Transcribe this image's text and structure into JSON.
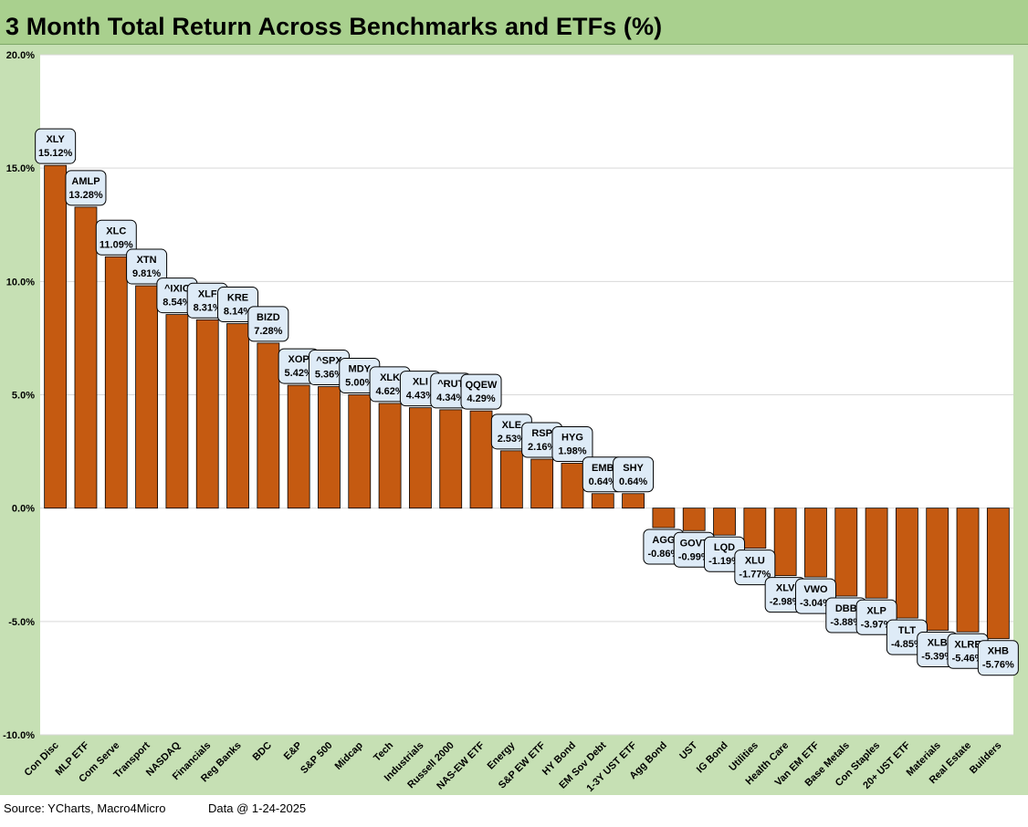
{
  "chart_data": {
    "type": "bar",
    "title": "3 Month Total Return Across Benchmarks and ETFs (%)",
    "xlabel": "",
    "ylabel": "",
    "ylim": [
      -10,
      20
    ],
    "yticks": [
      -10,
      -5,
      0,
      5,
      10,
      15,
      20
    ],
    "ytick_labels": [
      "-10.0%",
      "-5.0%",
      "0.0%",
      "5.0%",
      "10.0%",
      "15.0%",
      "20.0%"
    ],
    "grid": true,
    "bar_color": "#c55a11",
    "categories": [
      "Con Disc",
      "MLP ETF",
      "Com Serve",
      "Transport",
      "NASDAQ",
      "Financials",
      "Reg Banks",
      "BDC",
      "E&P",
      "S&P 500",
      "Midcap",
      "Tech",
      "Industrials",
      "Russell 2000",
      "NAS-EW ETF",
      "Energy",
      "S&P EW ETF",
      "HY Bond",
      "EM Sov Debt",
      "1-3Y UST ETF",
      "Agg Bond",
      "UST",
      "IG Bond",
      "Utilities",
      "Health Care",
      "Van EM ETF",
      "Base Metals",
      "Con Staples",
      "20+ UST ETF",
      "Materials",
      "Real Estate",
      "Builders"
    ],
    "tickers": [
      "XLY",
      "AMLP",
      "XLC",
      "XTN",
      "^IXIC",
      "XLF",
      "KRE",
      "BIZD",
      "XOP",
      "^SPX",
      "MDY",
      "XLK",
      "XLI",
      "^RUT",
      "QQEW",
      "XLE",
      "RSP",
      "HYG",
      "EMB",
      "SHY",
      "AGG",
      "GOVT",
      "LQD",
      "XLU",
      "XLV",
      "VWO",
      "DBB",
      "XLP",
      "TLT",
      "XLB",
      "XLRE",
      "XHB"
    ],
    "values": [
      15.12,
      13.28,
      11.09,
      9.81,
      8.54,
      8.31,
      8.14,
      7.28,
      5.42,
      5.36,
      5.0,
      4.62,
      4.43,
      4.34,
      4.29,
      2.53,
      2.16,
      1.98,
      0.64,
      0.64,
      -0.86,
      -0.99,
      -1.19,
      -1.77,
      -2.98,
      -3.04,
      -3.88,
      -3.97,
      -4.85,
      -5.39,
      -5.46,
      -5.76
    ],
    "value_labels": [
      "15.12%",
      "13.28%",
      "11.09%",
      "9.81%",
      "8.54%",
      "8.31%",
      "8.14%",
      "7.28%",
      "5.42%",
      "5.36%",
      "5.00%",
      "4.62%",
      "4.43%",
      "4.34%",
      "4.29%",
      "2.53%",
      "2.16%",
      "1.98%",
      "0.64%",
      "0.64%",
      "-0.86%",
      "-0.99%",
      "-1.19%",
      "-1.77%",
      "-2.98%",
      "-3.04%",
      "-3.88%",
      "-3.97%",
      "-4.85%",
      "-5.39%",
      "-5.46%",
      "-5.76%"
    ]
  },
  "footer": {
    "source": "Source: YCharts, Macro4Micro",
    "date": "Data @ 1-24-2025"
  }
}
